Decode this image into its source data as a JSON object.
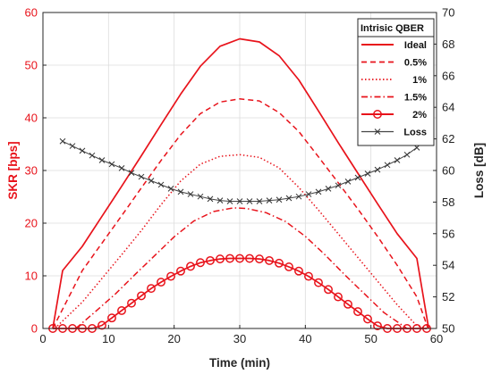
{
  "chart_data": {
    "type": "line",
    "xlabel": "Time (min)",
    "ylabel_left": "SKR [bps]",
    "ylabel_right": "Loss [dB]",
    "xlim": [
      0,
      60
    ],
    "ylim_left": [
      0,
      60
    ],
    "ylim_right": [
      50,
      70
    ],
    "xticks": [
      "0",
      "10",
      "20",
      "30",
      "40",
      "50",
      "60"
    ],
    "yticks_left": [
      "0",
      "10",
      "20",
      "30",
      "40",
      "50",
      "60"
    ],
    "yticks_right": [
      "50",
      "52",
      "54",
      "56",
      "58",
      "60",
      "62",
      "64",
      "66",
      "68",
      "70"
    ],
    "grid": true,
    "legend": {
      "title": "Intrisic QBER",
      "position": "top-right",
      "entries": [
        "Ideal",
        "0.5%",
        "1%",
        "1.5%",
        "2%",
        "Loss"
      ]
    },
    "colors": {
      "red": "#e8131b",
      "black": "#444444"
    },
    "series": [
      {
        "name": "Ideal",
        "axis": "left",
        "style": "solid",
        "x": [
          1.5,
          3,
          6,
          9,
          12,
          15,
          18,
          21,
          24,
          27,
          30,
          33,
          36,
          39,
          42,
          45,
          48,
          51,
          54,
          57,
          58.8
        ],
        "y": [
          0,
          11,
          15.6,
          21.3,
          27,
          32.8,
          38.7,
          44.5,
          49.8,
          53.6,
          55,
          54.4,
          51.8,
          47.2,
          41.3,
          35.3,
          29.5,
          23.7,
          18,
          13.3,
          0
        ]
      },
      {
        "name": "0.5%",
        "axis": "left",
        "style": "dash",
        "x": [
          1.5,
          6,
          9,
          12,
          15,
          18,
          21,
          24,
          27,
          30,
          33,
          36,
          39,
          42,
          45,
          48,
          51,
          54,
          57,
          58.7
        ],
        "y": [
          0,
          11,
          16.2,
          21.4,
          26.7,
          31.9,
          36.8,
          40.8,
          43,
          43.6,
          43.2,
          41,
          37.4,
          32.6,
          27.7,
          22.7,
          17.5,
          12,
          6,
          0
        ]
      },
      {
        "name": "1%",
        "axis": "left",
        "style": "dot",
        "x": [
          1.8,
          6,
          9,
          12,
          15,
          18,
          21,
          24,
          27,
          30,
          33,
          36,
          39,
          42,
          45,
          48,
          51,
          54,
          57,
          58.6
        ],
        "y": [
          0,
          5,
          9.5,
          14,
          18.6,
          23.5,
          28,
          31.2,
          32.7,
          33,
          32.5,
          30.5,
          26.8,
          22.5,
          18,
          13.5,
          9,
          4.5,
          0.5,
          0
        ]
      },
      {
        "name": "1.5%",
        "axis": "left",
        "style": "dashdot",
        "x": [
          5,
          8,
          11,
          14,
          17,
          20,
          23,
          26,
          29,
          31,
          34,
          37,
          40,
          43,
          46,
          49,
          52,
          55.5
        ],
        "y": [
          0,
          3.2,
          6.5,
          10.2,
          13.8,
          17.4,
          20.4,
          22.2,
          22.9,
          22.8,
          22,
          20.3,
          17.5,
          14,
          10.2,
          6.6,
          3,
          0
        ]
      },
      {
        "name": "2%",
        "axis": "left",
        "style": "circles",
        "x": [
          1.5,
          3,
          4.5,
          6,
          7.5,
          9,
          10.5,
          12,
          13.5,
          15,
          16.5,
          18,
          19.5,
          21,
          22.5,
          24,
          25.5,
          27,
          28.5,
          30,
          31.5,
          33,
          34.5,
          36,
          37.5,
          39,
          40.5,
          42,
          43.5,
          45,
          46.5,
          48,
          49.5,
          51,
          52.5,
          54,
          55.5,
          57,
          58.5
        ],
        "y": [
          0,
          0,
          0,
          0,
          0,
          0.6,
          2,
          3.4,
          4.8,
          6.2,
          7.6,
          8.8,
          9.9,
          10.9,
          11.8,
          12.5,
          12.9,
          13.2,
          13.3,
          13.3,
          13.3,
          13.2,
          12.9,
          12.4,
          11.7,
          10.9,
          9.9,
          8.7,
          7.4,
          6,
          4.6,
          3.2,
          1.8,
          0.5,
          0,
          0,
          0,
          0,
          0
        ]
      },
      {
        "name": "Loss",
        "axis": "right",
        "style": "cross",
        "x": [
          3,
          4.5,
          6,
          7.5,
          9,
          10.5,
          12,
          13.5,
          15,
          16.5,
          18,
          19.5,
          21,
          22.5,
          24,
          25.5,
          27,
          28.5,
          30,
          31.5,
          33,
          34.5,
          36,
          37.5,
          39,
          40.5,
          42,
          43.5,
          45,
          46.5,
          48,
          49.5,
          51,
          52.5,
          54,
          55.5,
          57
        ],
        "y": [
          61.85,
          61.55,
          61.25,
          60.95,
          60.65,
          60.4,
          60.15,
          59.85,
          59.6,
          59.35,
          59.1,
          58.85,
          58.65,
          58.5,
          58.35,
          58.2,
          58.1,
          58.05,
          58.05,
          58.05,
          58.05,
          58.1,
          58.15,
          58.25,
          58.35,
          58.5,
          58.65,
          58.85,
          59.05,
          59.3,
          59.55,
          59.8,
          60.05,
          60.35,
          60.65,
          61,
          61.45
        ]
      }
    ]
  }
}
